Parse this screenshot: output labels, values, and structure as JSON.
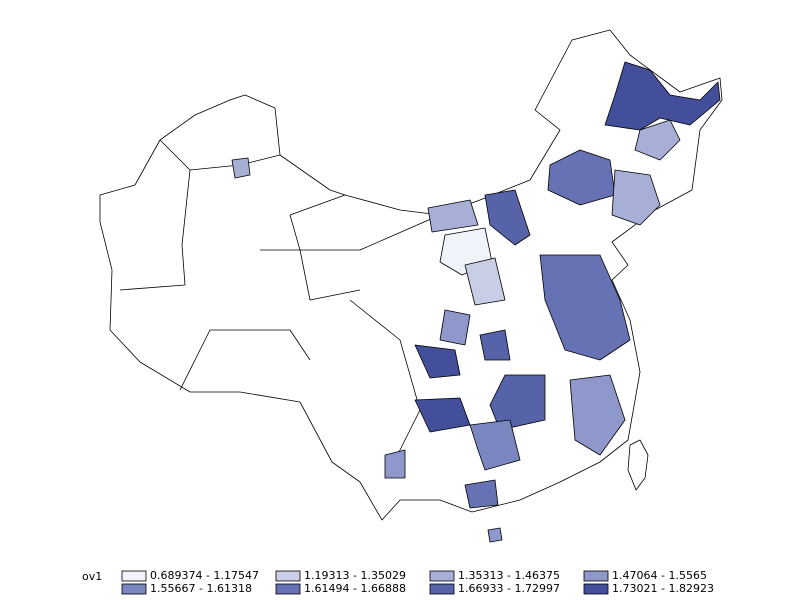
{
  "legend": {
    "title": "ov1",
    "items": [
      {
        "label": "0.689374 - 1.17547",
        "color": "#f1f3fb"
      },
      {
        "label": "1.19313 - 1.35029",
        "color": "#c9cee7"
      },
      {
        "label": "1.35313 - 1.46375",
        "color": "#a7afd7"
      },
      {
        "label": "1.47064 - 1.5565",
        "color": "#8e98ca"
      },
      {
        "label": "1.55667 - 1.61318",
        "color": "#7a86bf"
      },
      {
        "label": "1.61494 - 1.66888",
        "color": "#6672b3"
      },
      {
        "label": "1.66933 - 1.72997",
        "color": "#5663a9"
      },
      {
        "label": "1.73021 - 1.82923",
        "color": "#434f9b"
      }
    ]
  }
}
